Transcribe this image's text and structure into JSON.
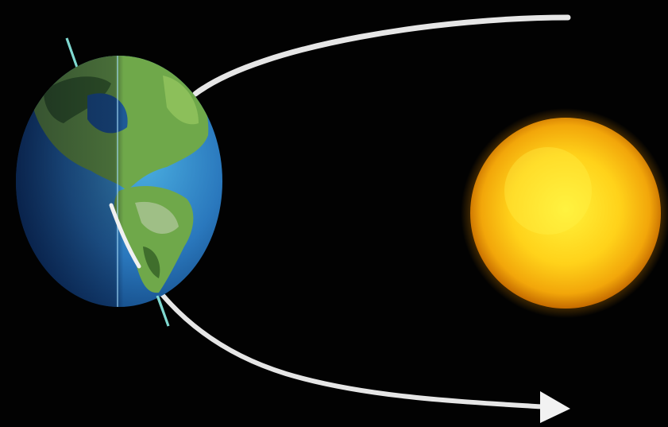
{
  "scene": {
    "background_color": "#020202",
    "orbit_color": "#e6e6e6",
    "axis_color": "#7fd8d0",
    "sun_colors": {
      "core": "#fff23a",
      "mid": "#ffd21a",
      "edge": "#e08a00"
    },
    "earth_colors": {
      "ocean_light": "#3f9fd6",
      "ocean_dark": "#10386e",
      "land": "#6fa84a",
      "land_dark": "#3f6e2c"
    },
    "objects": [
      {
        "name": "Earth",
        "icon": "earth-icon"
      },
      {
        "name": "Sun",
        "icon": "sun-icon"
      }
    ],
    "orbit": {
      "direction": "counter-clockwise",
      "arrowhead": "bottom-right"
    }
  }
}
